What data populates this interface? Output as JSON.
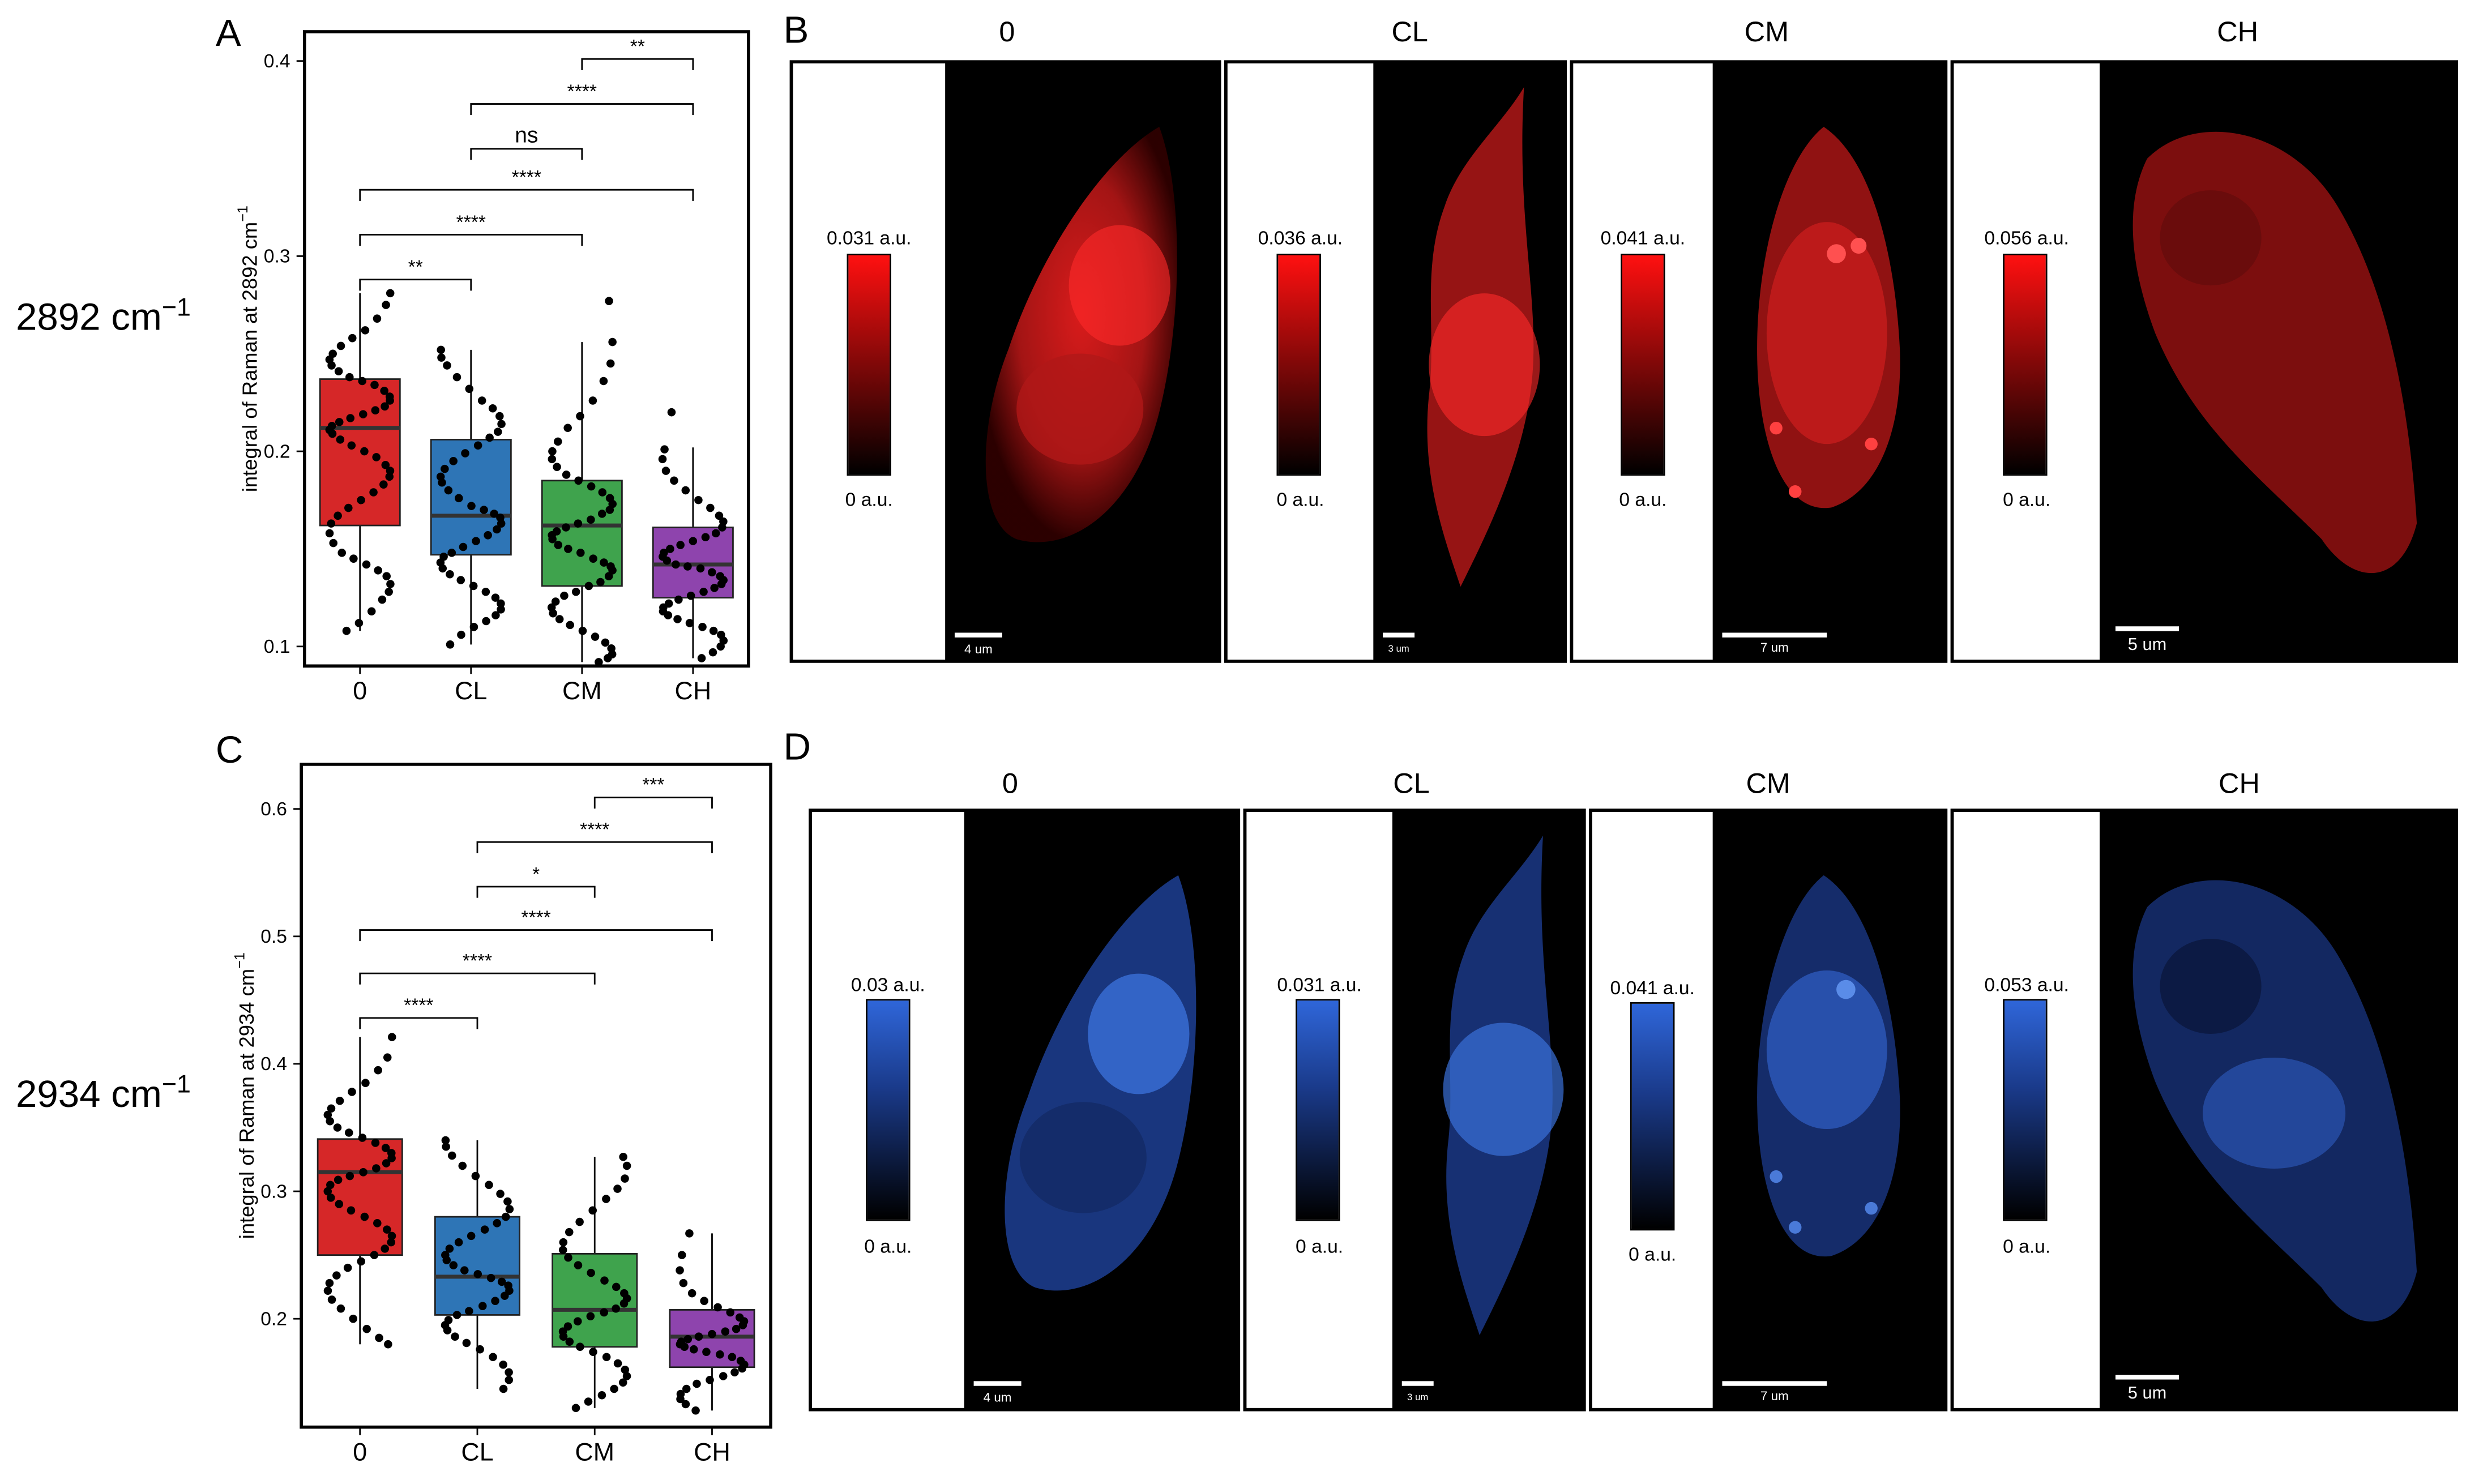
{
  "colors": {
    "box_0": "#d62728",
    "box_CL": "#2e75b6",
    "box_CM": "#3fa34d",
    "box_CH": "#8e44ad",
    "red_max": "#ff1010",
    "blue_max": "#2f66d9"
  },
  "panels": {
    "A": "A",
    "B": "B",
    "C": "C",
    "D": "D"
  },
  "wavenumbers": {
    "top": "2892 cm",
    "top_sup": "−1",
    "bottom": "2934 cm",
    "bottom_sup": "−1"
  },
  "chart_data": [
    {
      "type": "box",
      "panel": "A",
      "title": "",
      "xlabel": "",
      "ylabel": "integral of Raman at 2892 cm",
      "ylabel_sup": "−1",
      "categories": [
        "0",
        "CL",
        "CM",
        "CH"
      ],
      "ylim": [
        0.09,
        0.415
      ],
      "yticks": [
        0.1,
        0.2,
        0.3,
        0.4
      ],
      "ytick_labels": [
        "0.1",
        "0.2",
        "0.3",
        "0.4"
      ],
      "boxes": [
        {
          "name": "0",
          "whisker_low": 0.108,
          "q1": 0.162,
          "median": 0.212,
          "q3": 0.237,
          "whisker_high": 0.281
        },
        {
          "name": "CL",
          "whisker_low": 0.101,
          "q1": 0.147,
          "median": 0.167,
          "q3": 0.206,
          "whisker_high": 0.252
        },
        {
          "name": "CM",
          "whisker_low": 0.092,
          "q1": 0.131,
          "median": 0.162,
          "q3": 0.185,
          "whisker_high": 0.256
        },
        {
          "name": "CH",
          "whisker_low": 0.094,
          "q1": 0.125,
          "median": 0.142,
          "q3": 0.161,
          "whisker_high": 0.202
        }
      ],
      "points": [
        [
          0.281,
          0.275,
          0.268,
          0.262,
          0.258,
          0.254,
          0.25,
          0.247,
          0.244,
          0.241,
          0.238,
          0.236,
          0.234,
          0.231,
          0.228,
          0.226,
          0.223,
          0.221,
          0.219,
          0.217,
          0.215,
          0.213,
          0.211,
          0.209,
          0.206,
          0.203,
          0.2,
          0.197,
          0.193,
          0.19,
          0.187,
          0.183,
          0.179,
          0.175,
          0.171,
          0.167,
          0.163,
          0.158,
          0.153,
          0.148,
          0.145,
          0.142,
          0.139,
          0.136,
          0.132,
          0.128,
          0.124,
          0.118,
          0.112,
          0.108
        ],
        [
          0.252,
          0.248,
          0.244,
          0.238,
          0.232,
          0.226,
          0.222,
          0.218,
          0.214,
          0.21,
          0.207,
          0.203,
          0.199,
          0.195,
          0.191,
          0.187,
          0.184,
          0.18,
          0.176,
          0.172,
          0.17,
          0.168,
          0.166,
          0.163,
          0.16,
          0.157,
          0.154,
          0.151,
          0.148,
          0.146,
          0.143,
          0.14,
          0.137,
          0.134,
          0.131,
          0.128,
          0.125,
          0.122,
          0.119,
          0.116,
          0.113,
          0.11,
          0.106,
          0.101
        ],
        [
          0.277,
          0.256,
          0.245,
          0.236,
          0.226,
          0.218,
          0.212,
          0.205,
          0.2,
          0.196,
          0.192,
          0.188,
          0.185,
          0.182,
          0.179,
          0.176,
          0.173,
          0.17,
          0.168,
          0.165,
          0.163,
          0.161,
          0.159,
          0.157,
          0.155,
          0.152,
          0.15,
          0.148,
          0.145,
          0.143,
          0.141,
          0.139,
          0.136,
          0.133,
          0.131,
          0.128,
          0.126,
          0.123,
          0.12,
          0.117,
          0.114,
          0.111,
          0.108,
          0.105,
          0.102,
          0.099,
          0.096,
          0.094,
          0.092
        ],
        [
          0.22,
          0.201,
          0.196,
          0.19,
          0.185,
          0.18,
          0.175,
          0.171,
          0.167,
          0.164,
          0.161,
          0.158,
          0.156,
          0.154,
          0.152,
          0.15,
          0.148,
          0.146,
          0.144,
          0.142,
          0.141,
          0.14,
          0.138,
          0.136,
          0.134,
          0.132,
          0.13,
          0.128,
          0.126,
          0.124,
          0.122,
          0.12,
          0.118,
          0.116,
          0.114,
          0.112,
          0.11,
          0.108,
          0.106,
          0.103,
          0.1,
          0.097,
          0.094
        ]
      ],
      "significance": [
        {
          "from": "CM",
          "to": "CH",
          "y": 0.401,
          "label": "**"
        },
        {
          "from": "CL",
          "to": "CH",
          "y": 0.378,
          "label": "****"
        },
        {
          "from": "CL",
          "to": "CM",
          "y": 0.355,
          "label": "ns"
        },
        {
          "from": "0",
          "to": "CH",
          "y": 0.334,
          "label": "****"
        },
        {
          "from": "0",
          "to": "CM",
          "y": 0.311,
          "label": "****"
        },
        {
          "from": "0",
          "to": "CL",
          "y": 0.288,
          "label": "**"
        }
      ]
    },
    {
      "type": "box",
      "panel": "C",
      "title": "",
      "xlabel": "",
      "ylabel": "integral of Raman at 2934 cm",
      "ylabel_sup": "−1",
      "categories": [
        "0",
        "CL",
        "CM",
        "CH"
      ],
      "ylim": [
        0.115,
        0.635
      ],
      "yticks": [
        0.2,
        0.3,
        0.4,
        0.5,
        0.6
      ],
      "ytick_labels": [
        "0.2",
        "0.3",
        "0.4",
        "0.5",
        "0.6"
      ],
      "boxes": [
        {
          "name": "0",
          "whisker_low": 0.18,
          "q1": 0.25,
          "median": 0.315,
          "q3": 0.341,
          "whisker_high": 0.421
        },
        {
          "name": "CL",
          "whisker_low": 0.145,
          "q1": 0.203,
          "median": 0.233,
          "q3": 0.28,
          "whisker_high": 0.34
        },
        {
          "name": "CM",
          "whisker_low": 0.13,
          "q1": 0.178,
          "median": 0.207,
          "q3": 0.251,
          "whisker_high": 0.327
        },
        {
          "name": "CH",
          "whisker_low": 0.128,
          "q1": 0.162,
          "median": 0.186,
          "q3": 0.207,
          "whisker_high": 0.267
        }
      ],
      "points": [
        [
          0.421,
          0.405,
          0.395,
          0.385,
          0.378,
          0.371,
          0.365,
          0.36,
          0.355,
          0.35,
          0.346,
          0.342,
          0.338,
          0.334,
          0.33,
          0.326,
          0.322,
          0.318,
          0.315,
          0.312,
          0.309,
          0.305,
          0.3,
          0.295,
          0.29,
          0.285,
          0.28,
          0.275,
          0.27,
          0.265,
          0.26,
          0.255,
          0.25,
          0.245,
          0.24,
          0.234,
          0.228,
          0.222,
          0.215,
          0.208,
          0.2,
          0.192,
          0.185,
          0.18
        ],
        [
          0.34,
          0.335,
          0.328,
          0.32,
          0.312,
          0.305,
          0.298,
          0.292,
          0.286,
          0.28,
          0.275,
          0.27,
          0.265,
          0.26,
          0.255,
          0.25,
          0.246,
          0.242,
          0.238,
          0.235,
          0.232,
          0.229,
          0.226,
          0.222,
          0.218,
          0.214,
          0.21,
          0.206,
          0.203,
          0.199,
          0.195,
          0.191,
          0.186,
          0.181,
          0.176,
          0.17,
          0.164,
          0.158,
          0.152,
          0.145
        ],
        [
          0.327,
          0.32,
          0.31,
          0.302,
          0.294,
          0.285,
          0.276,
          0.268,
          0.26,
          0.254,
          0.248,
          0.242,
          0.236,
          0.23,
          0.225,
          0.22,
          0.216,
          0.212,
          0.208,
          0.205,
          0.202,
          0.198,
          0.194,
          0.19,
          0.186,
          0.182,
          0.178,
          0.174,
          0.17,
          0.165,
          0.16,
          0.155,
          0.15,
          0.145,
          0.14,
          0.135,
          0.13
        ],
        [
          0.267,
          0.25,
          0.238,
          0.228,
          0.22,
          0.214,
          0.209,
          0.205,
          0.201,
          0.198,
          0.195,
          0.192,
          0.19,
          0.188,
          0.186,
          0.184,
          0.182,
          0.18,
          0.178,
          0.176,
          0.174,
          0.172,
          0.17,
          0.167,
          0.164,
          0.161,
          0.158,
          0.155,
          0.152,
          0.149,
          0.145,
          0.141,
          0.137,
          0.133,
          0.128
        ]
      ],
      "significance": [
        {
          "from": "CM",
          "to": "CH",
          "y": 0.609,
          "label": "***"
        },
        {
          "from": "CL",
          "to": "CH",
          "y": 0.574,
          "label": "****"
        },
        {
          "from": "CL",
          "to": "CM",
          "y": 0.539,
          "label": "*"
        },
        {
          "from": "0",
          "to": "CH",
          "y": 0.505,
          "label": "****"
        },
        {
          "from": "0",
          "to": "CM",
          "y": 0.471,
          "label": "****"
        },
        {
          "from": "0",
          "to": "CL",
          "y": 0.436,
          "label": "****"
        }
      ]
    }
  ],
  "image_panels": {
    "B": {
      "conditions": [
        "0",
        "CL",
        "CM",
        "CH"
      ],
      "colorbar_max": [
        "0.031 a.u.",
        "0.036 a.u.",
        "0.041 a.u.",
        "0.056 a.u."
      ],
      "colorbar_min": [
        "0 a.u.",
        "0 a.u.",
        "0 a.u.",
        "0 a.u."
      ],
      "scale_bars": [
        "4 um",
        "3 um",
        "7 um",
        "5 um"
      ]
    },
    "D": {
      "conditions": [
        "0",
        "CL",
        "CM",
        "CH"
      ],
      "colorbar_max": [
        "0.03 a.u.",
        "0.031 a.u.",
        "0.041 a.u.",
        "0.053 a.u."
      ],
      "colorbar_min": [
        "0 a.u.",
        "0 a.u.",
        "0 a.u.",
        "0 a.u."
      ],
      "scale_bars": [
        "4 um",
        "3 um",
        "7 um",
        "5 um"
      ]
    }
  }
}
